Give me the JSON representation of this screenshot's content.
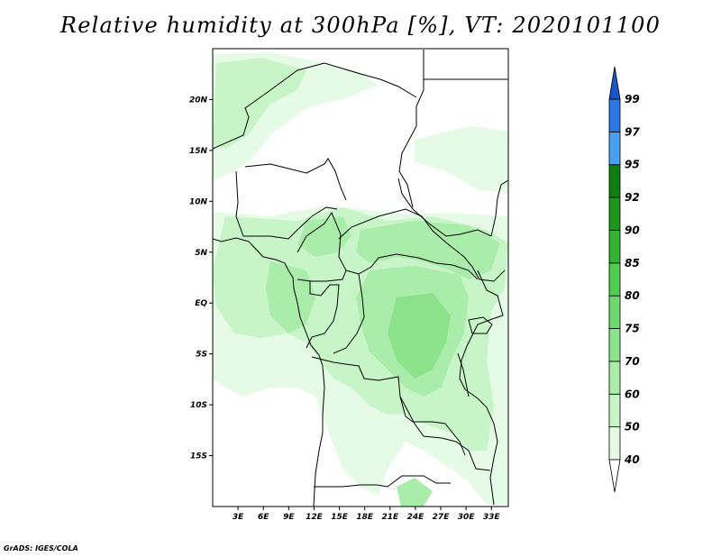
{
  "title": "Relative humidity at 300hPa [%], VT: 2020101100",
  "credit": "GrADS: IGES/COLA",
  "map": {
    "lon_range": [
      0,
      35
    ],
    "lat_range": [
      -20,
      25
    ],
    "lon_ticks": [
      "3E",
      "6E",
      "9E",
      "12E",
      "15E",
      "18E",
      "21E",
      "24E",
      "27E",
      "30E",
      "33E"
    ],
    "lat_ticks": [
      "20N",
      "15N",
      "10N",
      "5N",
      "EQ",
      "5S",
      "10S",
      "15S"
    ]
  },
  "colorbar": {
    "levels": [
      "40",
      "50",
      "60",
      "70",
      "75",
      "80",
      "85",
      "90",
      "92",
      "95",
      "97",
      "99"
    ],
    "colors": [
      "#ffffff",
      "#e6fbe6",
      "#c8f5c8",
      "#aaedaa",
      "#8ce38c",
      "#6ed86e",
      "#50cc50",
      "#32b432",
      "#1e961e",
      "#0f7d0f",
      "#4aa0f0",
      "#2b78e4",
      "#1755c8"
    ]
  }
}
